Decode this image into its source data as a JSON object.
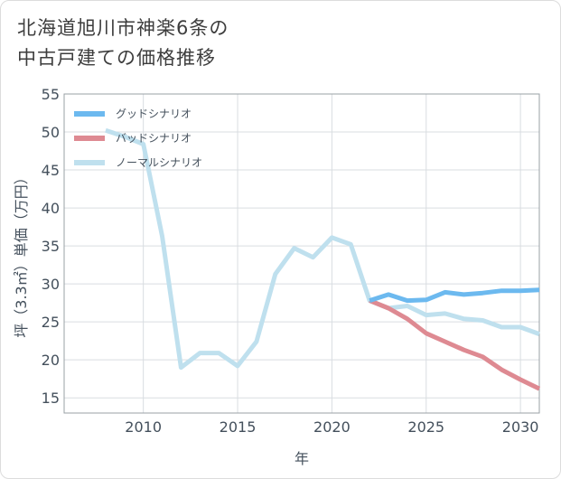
{
  "title_line1": "北海道旭川市神楽6条の",
  "title_line2": "中古戸建ての価格推移",
  "chart_data": {
    "type": "line",
    "xlabel": "年",
    "ylabel": "坪（3.3㎡）単価（万円）",
    "xlim": [
      2005.8,
      2031
    ],
    "ylim": [
      13,
      55
    ],
    "xticks": [
      2010,
      2015,
      2020,
      2025,
      2030
    ],
    "yticks": [
      15,
      20,
      25,
      30,
      35,
      40,
      45,
      50,
      55
    ],
    "grid": true,
    "legend_position": "top-left",
    "series": [
      {
        "name": "グッドシナリオ",
        "color": "#6cb9ef",
        "x": [
          2022,
          2023,
          2024,
          2025,
          2026,
          2027,
          2028,
          2029,
          2030,
          2031
        ],
        "y": [
          27.8,
          28.6,
          27.8,
          27.9,
          28.9,
          28.6,
          28.8,
          29.1,
          29.1,
          29.2
        ]
      },
      {
        "name": "バッドシナリオ",
        "color": "#de8a92",
        "x": [
          2022,
          2023,
          2024,
          2025,
          2026,
          2027,
          2028,
          2029,
          2030,
          2031
        ],
        "y": [
          27.8,
          26.8,
          25.4,
          23.5,
          22.4,
          21.3,
          20.4,
          18.7,
          17.4,
          16.2
        ]
      },
      {
        "name": "ノーマルシナリオ",
        "color": "#bfe0ee",
        "x": [
          2008,
          2009,
          2010,
          2011,
          2012,
          2013,
          2014,
          2015,
          2016,
          2017,
          2018,
          2019,
          2020,
          2021,
          2022,
          2023,
          2024,
          2025,
          2026,
          2027,
          2028,
          2029,
          2030,
          2031
        ],
        "y": [
          50.2,
          49.4,
          48.4,
          36.3,
          19.0,
          20.9,
          20.9,
          19.2,
          22.4,
          31.3,
          34.7,
          33.5,
          36.1,
          35.2,
          27.8,
          26.8,
          27.1,
          25.9,
          26.1,
          25.4,
          25.2,
          24.3,
          24.3,
          23.4
        ]
      }
    ]
  }
}
